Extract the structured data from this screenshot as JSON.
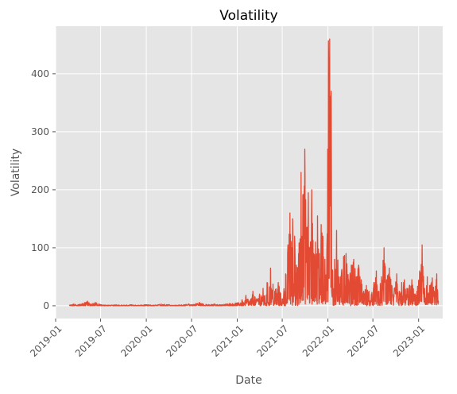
{
  "chart_data": {
    "type": "line",
    "title": "Volatility",
    "xlabel": "Date",
    "ylabel": "Volatility",
    "x_axis": "date",
    "xlim": [
      "2019-01-01",
      "2023-04-08"
    ],
    "ylim": [
      -22,
      482
    ],
    "grid": true,
    "legend": "none",
    "x_ticks": [
      "2019-01",
      "2019-07",
      "2020-01",
      "2020-07",
      "2021-01",
      "2021-07",
      "2022-01",
      "2022-07",
      "2023-01"
    ],
    "y_ticks": [
      0,
      100,
      200,
      300,
      400
    ],
    "colors": {
      "line": "#e24a33",
      "background": "#e5e5e5",
      "grid": "#ffffff"
    },
    "series": [
      {
        "x": [
          "2019-02-25",
          "2019-03-15",
          "2019-04-01",
          "2019-04-20",
          "2019-05-10",
          "2019-05-25",
          "2019-06-10",
          "2019-07-01",
          "2019-08-01",
          "2019-09-01",
          "2019-10-01",
          "2019-11-01",
          "2019-12-01",
          "2020-01-01",
          "2020-02-01",
          "2020-03-01",
          "2020-04-01",
          "2020-05-01",
          "2020-06-01",
          "2020-06-20",
          "2020-07-01",
          "2020-08-01",
          "2020-09-01",
          "2020-10-01",
          "2020-11-01",
          "2020-12-01",
          "2021-01-01",
          "2021-01-20",
          "2021-02-05",
          "2021-02-20",
          "2021-03-05",
          "2021-03-20",
          "2021-04-01",
          "2021-04-15",
          "2021-05-01",
          "2021-05-15",
          "2021-06-01",
          "2021-06-15",
          "2021-07-01",
          "2021-07-15",
          "2021-08-01",
          "2021-08-12",
          "2021-08-20",
          "2021-08-27",
          "2021-09-05",
          "2021-09-15",
          "2021-09-22",
          "2021-09-30",
          "2021-10-07",
          "2021-10-14",
          "2021-10-21",
          "2021-10-28",
          "2021-11-05",
          "2021-11-12",
          "2021-11-20",
          "2021-11-28",
          "2021-12-05",
          "2021-12-12",
          "2021-12-20",
          "2021-12-28",
          "2022-01-03",
          "2022-01-08",
          "2022-01-14",
          "2022-01-20",
          "2022-01-28",
          "2022-02-05",
          "2022-02-15",
          "2022-02-25",
          "2022-03-05",
          "2022-03-15",
          "2022-03-25",
          "2022-04-05",
          "2022-04-15",
          "2022-04-25",
          "2022-05-05",
          "2022-05-15",
          "2022-05-25",
          "2022-06-05",
          "2022-06-15",
          "2022-06-25",
          "2022-07-05",
          "2022-07-15",
          "2022-07-25",
          "2022-08-05",
          "2022-08-15",
          "2022-08-25",
          "2022-09-05",
          "2022-09-15",
          "2022-09-25",
          "2022-10-05",
          "2022-10-15",
          "2022-10-25",
          "2022-11-05",
          "2022-11-15",
          "2022-11-25",
          "2022-12-05",
          "2022-12-15",
          "2022-12-25",
          "2023-01-05",
          "2023-01-15",
          "2023-01-25",
          "2023-02-05",
          "2023-02-15",
          "2023-02-25",
          "2023-03-05",
          "2023-03-15",
          "2023-03-22"
        ],
        "y": [
          1,
          3,
          2,
          4,
          8,
          3,
          6,
          2,
          1,
          2,
          1,
          2,
          1,
          2,
          1,
          3,
          2,
          1,
          2,
          3,
          2,
          6,
          2,
          3,
          2,
          4,
          5,
          10,
          18,
          8,
          25,
          12,
          20,
          30,
          40,
          65,
          25,
          40,
          12,
          55,
          160,
          150,
          120,
          70,
          90,
          230,
          190,
          270,
          120,
          195,
          100,
          200,
          90,
          110,
          155,
          90,
          140,
          120,
          80,
          100,
          457,
          460,
          370,
          60,
          80,
          130,
          50,
          60,
          85,
          90,
          45,
          70,
          80,
          50,
          70,
          45,
          25,
          35,
          25,
          20,
          40,
          60,
          25,
          50,
          100,
          45,
          65,
          35,
          30,
          55,
          25,
          40,
          45,
          30,
          35,
          45,
          20,
          25,
          60,
          105,
          30,
          50,
          35,
          48,
          25,
          55,
          5
        ]
      }
    ]
  }
}
